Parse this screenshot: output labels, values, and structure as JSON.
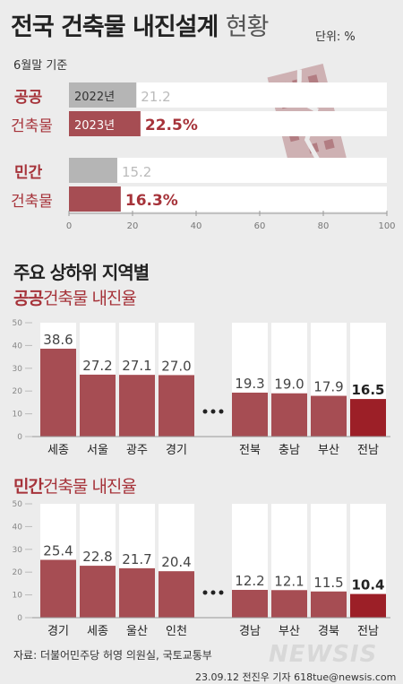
{
  "header": {
    "title_bold": "전국 건축물 내진설계",
    "title_light": "현황",
    "unit": "단위: %",
    "subtitle": "6월말 기준"
  },
  "colors": {
    "accent": "#a6333a",
    "bar_2023": "#a64d53",
    "bar_2022": "#b5b5b5",
    "bar_last": "#9c1f27"
  },
  "chart_data": [
    {
      "type": "bar",
      "orientation": "horizontal",
      "groups": [
        {
          "name_top": "공공",
          "name_bottom": "건축물",
          "bars": [
            {
              "year": "2022년",
              "value": 21.2,
              "label": "21.2"
            },
            {
              "year": "2023년",
              "value": 22.5,
              "label": "22.5%"
            }
          ]
        },
        {
          "name_top": "민간",
          "name_bottom": "건축물",
          "bars": [
            {
              "year": "",
              "value": 15.2,
              "label": "15.2"
            },
            {
              "year": "",
              "value": 16.3,
              "label": "16.3%"
            }
          ]
        }
      ],
      "xlim": [
        0,
        100
      ],
      "xticks": [
        "0",
        "20",
        "40",
        "60",
        "80",
        "100"
      ]
    },
    {
      "type": "bar",
      "title_highlight": "공공",
      "title_rest": "건축물 내진율",
      "categories": [
        "세종",
        "서울",
        "광주",
        "경기",
        "전북",
        "충남",
        "부산",
        "전남"
      ],
      "values": [
        38.6,
        27.2,
        27.1,
        27.0,
        19.3,
        19.0,
        17.9,
        16.5
      ],
      "labels": [
        "38.6",
        "27.2",
        "27.1",
        "27.0",
        "19.3",
        "19.0",
        "17.9",
        "16.5"
      ],
      "ylim": [
        0,
        50
      ],
      "yticks": [
        "0",
        "10",
        "20",
        "30",
        "40",
        "50"
      ]
    },
    {
      "type": "bar",
      "title_highlight": "민간",
      "title_rest": "건축물 내진율",
      "categories": [
        "경기",
        "세종",
        "울산",
        "인천",
        "경남",
        "부산",
        "경북",
        "전남"
      ],
      "values": [
        25.4,
        22.8,
        21.7,
        20.4,
        12.2,
        12.1,
        11.5,
        10.4
      ],
      "labels": [
        "25.4",
        "22.8",
        "21.7",
        "20.4",
        "12.2",
        "12.1",
        "11.5",
        "10.4"
      ],
      "ylim": [
        0,
        50
      ],
      "yticks": [
        "0",
        "10",
        "20",
        "30",
        "40",
        "50"
      ]
    }
  ],
  "section2_title": "주요 상하위 지역별",
  "source": "자료: 더불어민주당 허영 의원실, 국토교통부",
  "credit": "23.09.12 전진우 기자 618tue@newsis.com",
  "watermark": "NEWSIS"
}
